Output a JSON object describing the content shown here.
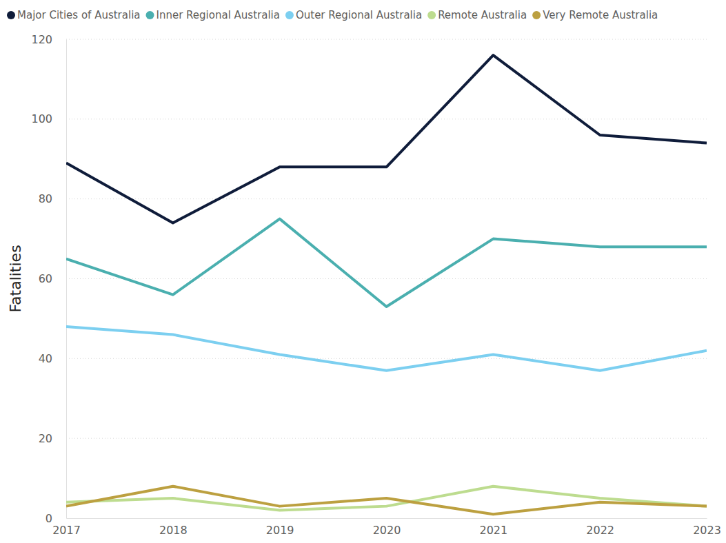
{
  "chart_data": {
    "type": "line",
    "y_label": "Fatalities",
    "x": [
      2017,
      2018,
      2019,
      2020,
      2021,
      2022,
      2023
    ],
    "xlim": [
      2017,
      2023
    ],
    "xticks": [
      2017,
      2018,
      2019,
      2020,
      2021,
      2022,
      2023
    ],
    "ylim": [
      0,
      120
    ],
    "yticks": [
      0,
      20,
      40,
      60,
      80,
      100,
      120
    ],
    "grid": true,
    "legend": "top",
    "series": [
      {
        "name": "Major Cities of Australia",
        "color": "#0f1c3a",
        "values": [
          89,
          74,
          88,
          88,
          116,
          96,
          94
        ]
      },
      {
        "name": "Inner Regional Australia",
        "color": "#4aafaf",
        "values": [
          65,
          56,
          75,
          53,
          70,
          68,
          68
        ]
      },
      {
        "name": "Outer Regional Australia",
        "color": "#7ccff0",
        "values": [
          48,
          46,
          41,
          37,
          41,
          37,
          42
        ]
      },
      {
        "name": "Remote Australia",
        "color": "#bddc8f",
        "values": [
          4,
          5,
          2,
          3,
          8,
          5,
          3
        ]
      },
      {
        "name": "Very Remote Australia",
        "color": "#bca040",
        "values": [
          3,
          8,
          3,
          5,
          1,
          4,
          3
        ]
      }
    ]
  }
}
